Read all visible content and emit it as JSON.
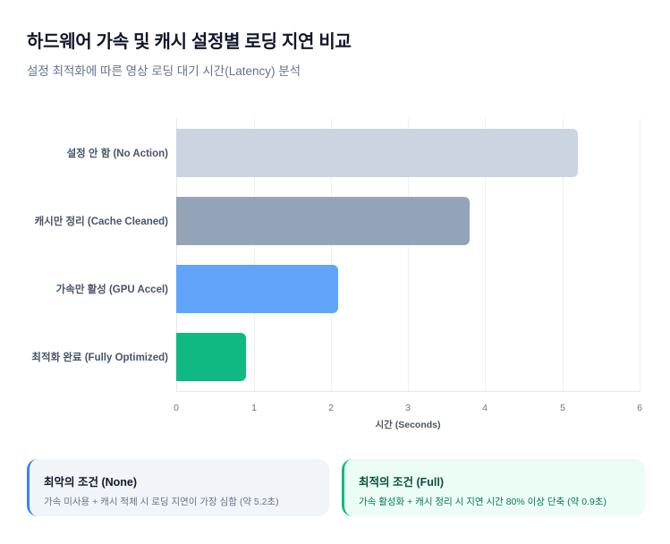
{
  "header": {
    "title": "하드웨어 가속 및 캐시 설정별 로딩 지연 비교",
    "subtitle": "설정 최적화에 따른 영상 로딩 대기 시간(Latency) 분석"
  },
  "chart_data": {
    "type": "bar",
    "orientation": "horizontal",
    "title": "하드웨어 가속 및 캐시 설정별 로딩 지연 비교",
    "subtitle": "설정 최적화에 따른 영상 로딩 대기 시간(Latency) 분석",
    "categories": [
      "설정 안 함 (No Action)",
      "캐시만 정리 (Cache Cleaned)",
      "가속만 활성 (GPU Accel)",
      "최적화 완료 (Fully Optimized)"
    ],
    "values": [
      5.2,
      3.8,
      2.1,
      0.9
    ],
    "colors": [
      "#cbd5e1",
      "#94a3b8",
      "#60a5fa",
      "#10b981"
    ],
    "xlabel": "시간 (Seconds)",
    "ylabel": "",
    "xlim": [
      0,
      6
    ],
    "xticks": [
      "0",
      "1",
      "2",
      "3",
      "4",
      "5",
      "6"
    ],
    "grid": true,
    "legend": "none"
  },
  "cards": {
    "worst": {
      "title": "최악의 조건 (None)",
      "description": "가속 미사용 + 캐시 적체 시 로딩 지연이 가장 심함 (약 5.2초)",
      "accent": "#3b82f6"
    },
    "best": {
      "title": "최적의 조건 (Full)",
      "description": "가속 활성화 + 캐시 정리 시 지연 시간 80% 이상 단축 (약 0.9초)",
      "accent": "#10b981"
    }
  }
}
